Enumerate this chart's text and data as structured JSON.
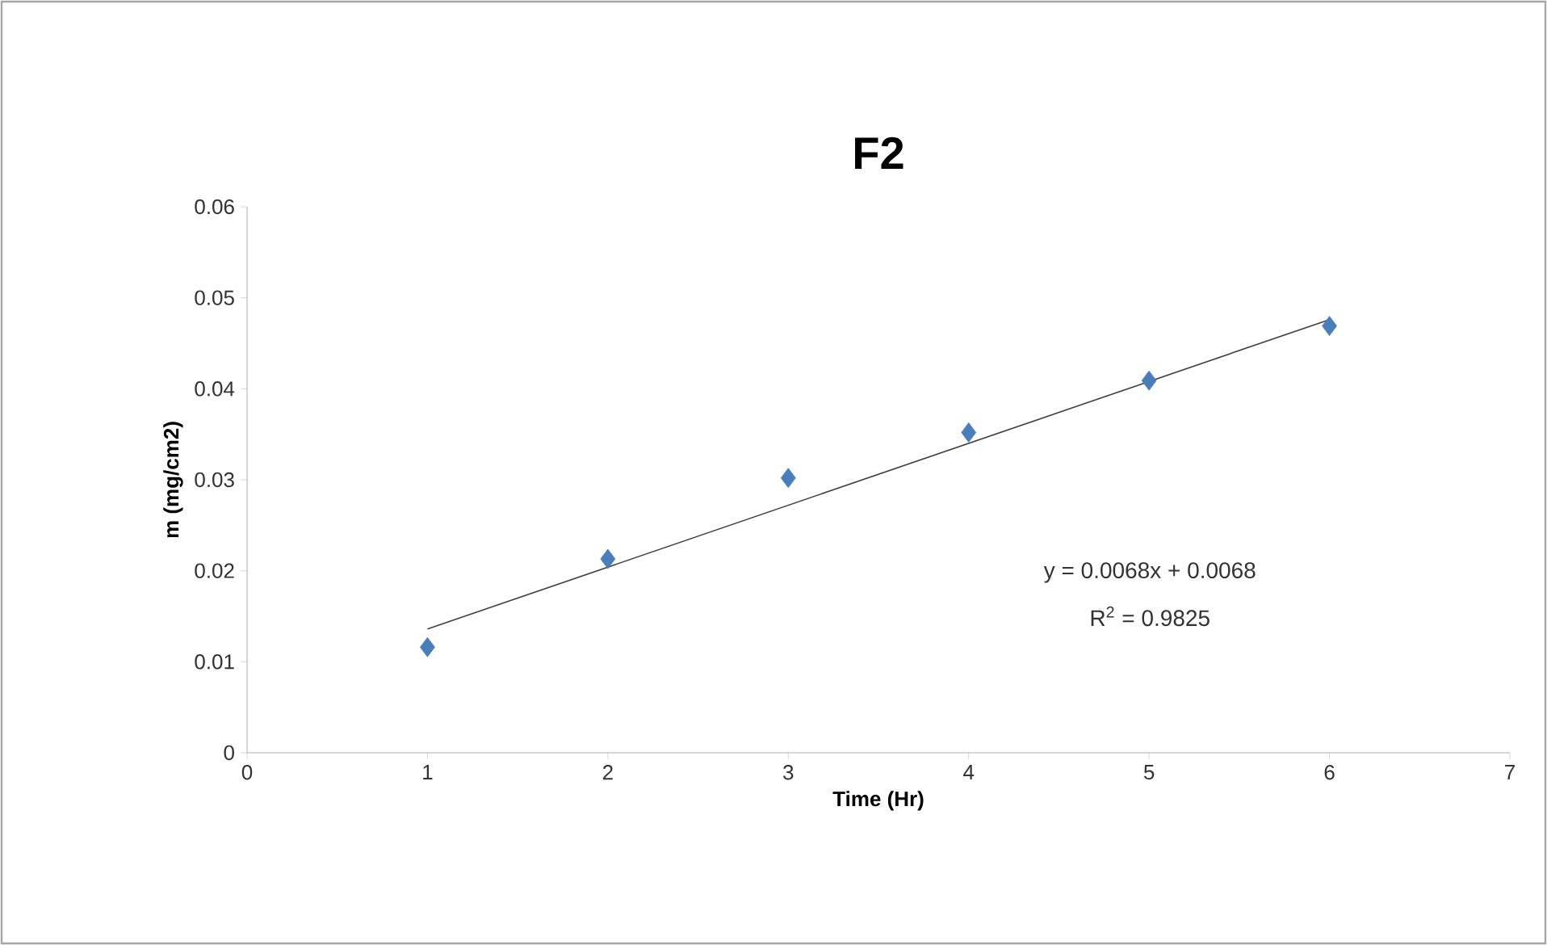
{
  "chart_data": {
    "type": "scatter",
    "title": "F2",
    "xlabel": "Time (Hr)",
    "ylabel": "m (mg/cm2)",
    "xlim": [
      0,
      7
    ],
    "ylim": [
      0,
      0.06
    ],
    "xticks": [
      0,
      1,
      2,
      3,
      4,
      5,
      6,
      7
    ],
    "yticks": [
      0,
      0.01,
      0.02,
      0.03,
      0.04,
      0.05,
      0.06
    ],
    "series": [
      {
        "color": "#4a7ebb",
        "marker": "diamond",
        "x": [
          1,
          2,
          3,
          4,
          5,
          6
        ],
        "values": [
          0.0116,
          0.0213,
          0.0302,
          0.0352,
          0.0409,
          0.0469
        ]
      },
      {
        "type": "line",
        "color": "#404040",
        "line_style": "solid",
        "marker": "none",
        "x": [
          1,
          6
        ],
        "values": [
          0.0136,
          0.0476
        ]
      }
    ],
    "annotations": [
      "y = 0.0068x + 0.0068",
      "R$^{2}$ = 0.9825"
    ]
  }
}
